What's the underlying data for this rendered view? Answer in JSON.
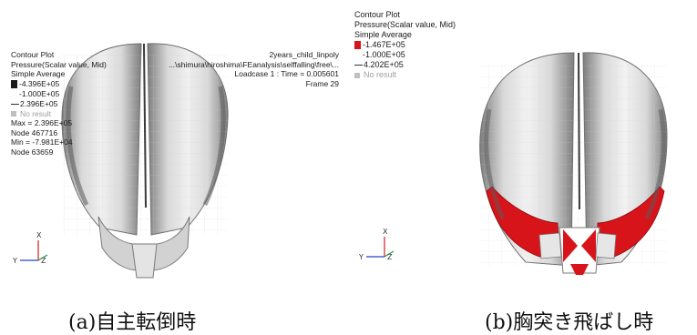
{
  "panel_a": {
    "title": "Contour Plot",
    "result_type": "Pressure(Scalar value, Mid)",
    "averaging": "Simple Average",
    "legend": [
      "-4.396E+05",
      "-1.000E+05",
      "2.396E+05"
    ],
    "no_result": "No result",
    "max": "Max = 2.396E+05",
    "max_node": "Node 467716",
    "min": "Min = -7.981E+04",
    "min_node": "Node 63659",
    "model_name": "2years_child_linpoly",
    "file_path": "...\\shimura\\hiroshima\\FEanalysis\\selffalling\\free\\...",
    "loadcase": "Loadcase 1 : Time = 0.005601",
    "frame": "Frame 29",
    "caption": "(a)自主転倒時",
    "axis_x": "X",
    "axis_y": "Y",
    "axis_z": "Z"
  },
  "panel_b": {
    "title": "Contour Plot",
    "result_type": "Pressure(Scalar value, Mid)",
    "averaging": "Simple Average",
    "legend": [
      "-1.467E+05",
      "-1.000E+05",
      "4.202E+05"
    ],
    "no_result": "No result",
    "caption": "(b)胸突き飛ばし時",
    "axis_x": "X",
    "axis_y": "Y",
    "axis_z": "Z"
  },
  "colors": {
    "mesh_light": "#e6e6e6",
    "mesh_mid": "#bdbdbd",
    "mesh_dark": "#8c8c8c",
    "pressure_red": "#d8141b",
    "axis_x": "#cc2222",
    "axis_y": "#2244cc",
    "axis_z": "#229944"
  }
}
